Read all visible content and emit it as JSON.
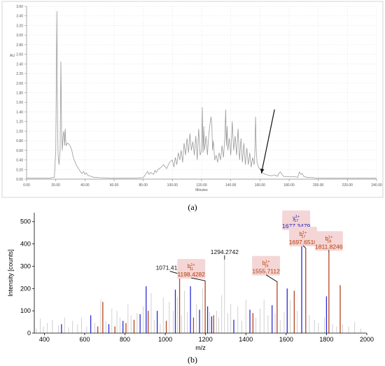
{
  "captions": {
    "a": "(a)",
    "b": "(b)"
  },
  "chart_data": [
    {
      "type": "line",
      "ylabel": "AU",
      "xlabel": "Minutes",
      "xlim": [
        0,
        240
      ],
      "ylim": [
        0,
        3.6
      ],
      "x_ticks": [
        "0.00",
        "20.00",
        "40.00",
        "60.00",
        "80.00",
        "100.00",
        "120.00",
        "140.00",
        "160.00",
        "180.00",
        "200.00",
        "220.00",
        "240.00"
      ],
      "y_ticks": [
        "0.00",
        "0.20",
        "0.40",
        "0.60",
        "0.80",
        "1.00",
        "1.20",
        "1.40",
        "1.60",
        "1.80",
        "2.00",
        "2.20",
        "2.40",
        "2.60",
        "2.80",
        "3.00",
        "3.20",
        "3.40",
        "3.60"
      ],
      "grid": "dotted",
      "annotation": {
        "type": "arrow",
        "from": [
          170,
          1.45
        ],
        "to": [
          161,
          0.12
        ]
      },
      "line_color": "#9a9a9a",
      "series": [
        {
          "x": [
            0,
            5,
            10,
            15,
            19,
            20,
            20.8,
            21.2,
            21.6,
            22.2,
            23,
            23.5,
            24,
            24.5,
            25,
            25.5,
            26,
            26.5,
            27,
            28,
            29,
            30,
            31,
            32,
            34,
            36,
            37,
            38,
            39,
            40,
            41,
            42,
            44,
            46,
            50,
            60,
            70,
            80,
            82,
            83,
            84,
            85,
            86,
            87,
            88,
            89,
            90,
            92,
            94,
            96,
            98,
            100,
            101,
            102,
            103,
            104,
            105,
            106,
            107,
            108,
            109,
            110,
            111,
            112,
            113,
            114,
            115,
            116,
            117,
            118,
            119,
            120,
            120.5,
            121,
            121.5,
            122,
            123,
            124,
            125,
            126,
            126.5,
            127,
            127.5,
            128,
            129,
            130,
            131,
            132,
            133,
            134,
            135,
            136,
            136.5,
            137,
            137.5,
            138,
            139,
            140,
            141,
            142,
            143,
            144,
            145,
            146,
            147,
            148,
            149,
            150,
            151,
            152,
            153,
            154,
            155,
            156,
            156.5,
            157,
            157.5,
            158,
            159,
            160,
            161,
            162,
            164,
            166,
            168,
            170,
            172,
            173,
            174,
            176,
            178,
            180,
            184,
            186,
            187,
            188,
            189,
            190,
            192,
            196,
            200,
            210,
            220,
            230,
            240
          ],
          "y": [
            0.02,
            0.02,
            0.02,
            0.02,
            0.04,
            0.6,
            3.5,
            1.2,
            0.5,
            0.3,
            0.6,
            2.45,
            1.0,
            0.6,
            0.9,
            1.0,
            0.7,
            1.05,
            0.7,
            0.75,
            0.73,
            0.68,
            0.6,
            0.45,
            0.3,
            0.2,
            0.15,
            0.12,
            0.16,
            0.1,
            0.13,
            0.08,
            0.06,
            0.04,
            0.03,
            0.02,
            0.02,
            0.03,
            0.12,
            0.16,
            0.1,
            0.14,
            0.12,
            0.1,
            0.18,
            0.14,
            0.2,
            0.24,
            0.3,
            0.22,
            0.35,
            0.4,
            0.25,
            0.45,
            0.3,
            0.55,
            0.4,
            0.6,
            0.35,
            0.75,
            0.5,
            0.85,
            0.55,
            0.95,
            0.6,
            0.78,
            0.5,
            0.9,
            0.4,
            1.05,
            0.5,
            0.6,
            1.5,
            0.55,
            1.1,
            0.6,
            0.9,
            0.5,
            0.95,
            1.2,
            1.3,
            1.15,
            0.6,
            0.8,
            0.4,
            0.5,
            0.35,
            0.55,
            0.4,
            0.7,
            0.45,
            0.9,
            1.45,
            0.7,
            1.1,
            0.6,
            0.85,
            0.5,
            1.2,
            0.6,
            0.9,
            0.5,
            1.05,
            0.4,
            0.85,
            0.35,
            0.75,
            0.3,
            0.65,
            0.3,
            0.55,
            0.25,
            0.45,
            0.3,
            0.5,
            1.3,
            0.6,
            0.35,
            0.25,
            0.2,
            0.18,
            0.12,
            0.1,
            0.08,
            0.07,
            0.09,
            0.06,
            0.12,
            0.15,
            0.06,
            0.05,
            0.05,
            0.05,
            0.04,
            0.15,
            0.1,
            0.12,
            0.06,
            0.04,
            0.03,
            0.02,
            0.02,
            0.02,
            0.02,
            0.02
          ]
        }
      ]
    },
    {
      "type": "bar",
      "xlabel": "m/z",
      "ylabel": "Intensity [counts]",
      "xlim": [
        350,
        2000
      ],
      "ylim": [
        0,
        540
      ],
      "x_ticks": [
        400,
        600,
        800,
        1000,
        1200,
        1400,
        1600,
        1800,
        2000
      ],
      "y_ticks": [
        0,
        100,
        200,
        300,
        400,
        500
      ],
      "peaks": [
        {
          "mz": 360,
          "i": 20,
          "c": "gray"
        },
        {
          "mz": 380,
          "i": 65,
          "c": "gray"
        },
        {
          "mz": 395,
          "i": 30,
          "c": "gray"
        },
        {
          "mz": 415,
          "i": 45,
          "c": "gray"
        },
        {
          "mz": 440,
          "i": 60,
          "c": "gray"
        },
        {
          "mz": 470,
          "i": 35,
          "c": "gray"
        },
        {
          "mz": 485,
          "i": 40,
          "c": "blue"
        },
        {
          "mz": 500,
          "i": 70,
          "c": "gray"
        },
        {
          "mz": 520,
          "i": 25,
          "c": "gray"
        },
        {
          "mz": 540,
          "i": 55,
          "c": "gray"
        },
        {
          "mz": 565,
          "i": 40,
          "c": "gray"
        },
        {
          "mz": 585,
          "i": 70,
          "c": "gray"
        },
        {
          "mz": 610,
          "i": 30,
          "c": "gray"
        },
        {
          "mz": 630,
          "i": 80,
          "c": "blue"
        },
        {
          "mz": 650,
          "i": 45,
          "c": "gray"
        },
        {
          "mz": 665,
          "i": 30,
          "c": "red"
        },
        {
          "mz": 680,
          "i": 150,
          "c": "gray"
        },
        {
          "mz": 690,
          "i": 140,
          "c": "red"
        },
        {
          "mz": 705,
          "i": 55,
          "c": "gray"
        },
        {
          "mz": 720,
          "i": 40,
          "c": "blue"
        },
        {
          "mz": 735,
          "i": 110,
          "c": "gray"
        },
        {
          "mz": 750,
          "i": 30,
          "c": "red"
        },
        {
          "mz": 760,
          "i": 100,
          "c": "gray"
        },
        {
          "mz": 775,
          "i": 70,
          "c": "gray"
        },
        {
          "mz": 790,
          "i": 55,
          "c": "blue"
        },
        {
          "mz": 805,
          "i": 45,
          "c": "red"
        },
        {
          "mz": 815,
          "i": 130,
          "c": "gray"
        },
        {
          "mz": 830,
          "i": 80,
          "c": "gray"
        },
        {
          "mz": 845,
          "i": 60,
          "c": "red"
        },
        {
          "mz": 860,
          "i": 90,
          "c": "gray"
        },
        {
          "mz": 875,
          "i": 85,
          "c": "blue"
        },
        {
          "mz": 890,
          "i": 120,
          "c": "gray"
        },
        {
          "mz": 905,
          "i": 210,
          "c": "blue"
        },
        {
          "mz": 915,
          "i": 100,
          "c": "red"
        },
        {
          "mz": 930,
          "i": 180,
          "c": "gray"
        },
        {
          "mz": 945,
          "i": 60,
          "c": "gray"
        },
        {
          "mz": 960,
          "i": 100,
          "c": "blue"
        },
        {
          "mz": 975,
          "i": 40,
          "c": "gray"
        },
        {
          "mz": 990,
          "i": 160,
          "c": "gray"
        },
        {
          "mz": 1005,
          "i": 55,
          "c": "red"
        },
        {
          "mz": 1020,
          "i": 140,
          "c": "gray"
        },
        {
          "mz": 1040,
          "i": 100,
          "c": "gray"
        },
        {
          "mz": 1050,
          "i": 195,
          "c": "blue"
        },
        {
          "mz": 1060,
          "i": 160,
          "c": "gray"
        },
        {
          "mz": 1071,
          "i": 265,
          "c": "red"
        },
        {
          "mz": 1080,
          "i": 80,
          "c": "gray"
        },
        {
          "mz": 1095,
          "i": 190,
          "c": "gray"
        },
        {
          "mz": 1110,
          "i": 95,
          "c": "gray"
        },
        {
          "mz": 1125,
          "i": 210,
          "c": "blue"
        },
        {
          "mz": 1140,
          "i": 70,
          "c": "red"
        },
        {
          "mz": 1155,
          "i": 130,
          "c": "gray"
        },
        {
          "mz": 1170,
          "i": 105,
          "c": "blue"
        },
        {
          "mz": 1185,
          "i": 200,
          "c": "gray"
        },
        {
          "mz": 1198,
          "i": 235,
          "c": "red"
        },
        {
          "mz": 1210,
          "i": 120,
          "c": "blue"
        },
        {
          "mz": 1220,
          "i": 95,
          "c": "gray"
        },
        {
          "mz": 1230,
          "i": 75,
          "c": "blue"
        },
        {
          "mz": 1240,
          "i": 80,
          "c": "red"
        },
        {
          "mz": 1255,
          "i": 100,
          "c": "gray"
        },
        {
          "mz": 1265,
          "i": 70,
          "c": "gray"
        },
        {
          "mz": 1280,
          "i": 170,
          "c": "gray"
        },
        {
          "mz": 1294,
          "i": 330,
          "c": "gray"
        },
        {
          "mz": 1310,
          "i": 90,
          "c": "gray"
        },
        {
          "mz": 1325,
          "i": 130,
          "c": "gray"
        },
        {
          "mz": 1340,
          "i": 60,
          "c": "blue"
        },
        {
          "mz": 1360,
          "i": 120,
          "c": "gray"
        },
        {
          "mz": 1380,
          "i": 55,
          "c": "gray"
        },
        {
          "mz": 1400,
          "i": 150,
          "c": "gray"
        },
        {
          "mz": 1420,
          "i": 105,
          "c": "blue"
        },
        {
          "mz": 1435,
          "i": 90,
          "c": "red"
        },
        {
          "mz": 1450,
          "i": 70,
          "c": "gray"
        },
        {
          "mz": 1470,
          "i": 110,
          "c": "gray"
        },
        {
          "mz": 1490,
          "i": 150,
          "c": "gray"
        },
        {
          "mz": 1510,
          "i": 80,
          "c": "gray"
        },
        {
          "mz": 1530,
          "i": 125,
          "c": "blue"
        },
        {
          "mz": 1545,
          "i": 90,
          "c": "gray"
        },
        {
          "mz": 1555,
          "i": 230,
          "c": "red"
        },
        {
          "mz": 1570,
          "i": 60,
          "c": "gray"
        },
        {
          "mz": 1590,
          "i": 95,
          "c": "gray"
        },
        {
          "mz": 1605,
          "i": 200,
          "c": "blue"
        },
        {
          "mz": 1620,
          "i": 150,
          "c": "gray"
        },
        {
          "mz": 1640,
          "i": 190,
          "c": "red"
        },
        {
          "mz": 1655,
          "i": 100,
          "c": "gray"
        },
        {
          "mz": 1677,
          "i": 390,
          "c": "blue"
        },
        {
          "mz": 1697,
          "i": 380,
          "c": "red"
        },
        {
          "mz": 1715,
          "i": 80,
          "c": "gray"
        },
        {
          "mz": 1740,
          "i": 60,
          "c": "gray"
        },
        {
          "mz": 1760,
          "i": 45,
          "c": "gray"
        },
        {
          "mz": 1790,
          "i": 70,
          "c": "gray"
        },
        {
          "mz": 1800,
          "i": 165,
          "c": "blue"
        },
        {
          "mz": 1812,
          "i": 360,
          "c": "red"
        },
        {
          "mz": 1830,
          "i": 40,
          "c": "gray"
        },
        {
          "mz": 1850,
          "i": 30,
          "c": "gray"
        },
        {
          "mz": 1868,
          "i": 215,
          "c": "red"
        },
        {
          "mz": 1880,
          "i": 40,
          "c": "gray"
        },
        {
          "mz": 1910,
          "i": 30,
          "c": "gray"
        },
        {
          "mz": 1940,
          "i": 50,
          "c": "gray"
        },
        {
          "mz": 1970,
          "i": 20,
          "c": "gray"
        }
      ],
      "annotations": [
        {
          "mz": 1071.4187,
          "intensity": 265,
          "label": "1071.4187",
          "ion": "",
          "color": "#111111"
        },
        {
          "mz": 1198.4282,
          "intensity": 235,
          "label": "1198.4282",
          "ion": "b",
          "sub": "11",
          "sup": "1+",
          "color": "#b33a00"
        },
        {
          "mz": 1294.2742,
          "intensity": 330,
          "label": "1294.2742",
          "ion": "",
          "color": "#111111"
        },
        {
          "mz": 1555.7112,
          "intensity": 230,
          "label": "1555.7112",
          "ion": "b",
          "sub": "15",
          "sup": "1+",
          "color": "#b33a00"
        },
        {
          "mz": 1677.3479,
          "intensity": 390,
          "label": "1677.3479",
          "ion": "y",
          "sub": "17",
          "sup": "1+",
          "color": "#2020c0"
        },
        {
          "mz": 1697.651,
          "intensity": 380,
          "label": "1697.6510",
          "ion": "b",
          "sub": "17",
          "sup": "1+",
          "color": "#b33a00"
        },
        {
          "mz": 1811.8246,
          "intensity": 360,
          "label": "1811.8246",
          "ion": "b",
          "sub": "18",
          "sup": "1+",
          "color": "#b33a00"
        }
      ],
      "colors": {
        "gray": "#c4c4c4",
        "blue": "#2a2ad8",
        "red": "#b8431e",
        "label_bg": "#f5d6d6"
      }
    }
  ]
}
